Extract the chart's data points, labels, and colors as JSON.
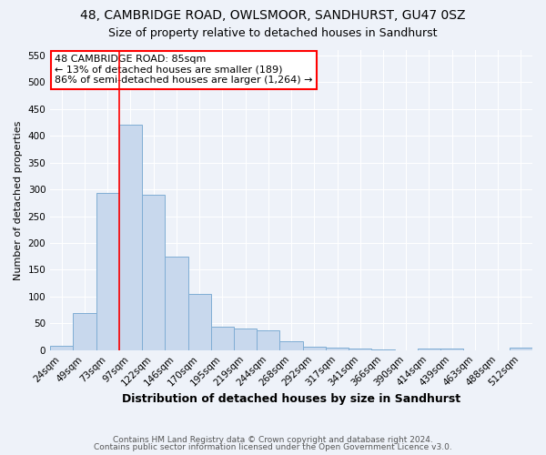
{
  "title": "48, CAMBRIDGE ROAD, OWLSMOOR, SANDHURST, GU47 0SZ",
  "subtitle": "Size of property relative to detached houses in Sandhurst",
  "xlabel": "Distribution of detached houses by size in Sandhurst",
  "ylabel": "Number of detached properties",
  "footer_lines": [
    "Contains HM Land Registry data © Crown copyright and database right 2024.",
    "Contains public sector information licensed under the Open Government Licence v3.0."
  ],
  "categories": [
    "24sqm",
    "49sqm",
    "73sqm",
    "97sqm",
    "122sqm",
    "146sqm",
    "170sqm",
    "195sqm",
    "219sqm",
    "244sqm",
    "268sqm",
    "292sqm",
    "317sqm",
    "341sqm",
    "366sqm",
    "390sqm",
    "414sqm",
    "439sqm",
    "463sqm",
    "488sqm",
    "512sqm"
  ],
  "values": [
    8,
    70,
    293,
    420,
    290,
    175,
    105,
    43,
    40,
    37,
    17,
    7,
    4,
    3,
    2,
    0,
    3,
    3,
    0,
    0,
    5
  ],
  "bar_color": "#c8d8ed",
  "bar_edge_color": "#7fadd4",
  "ylim": [
    0,
    560
  ],
  "yticks": [
    0,
    50,
    100,
    150,
    200,
    250,
    300,
    350,
    400,
    450,
    500,
    550
  ],
  "property_label": "48 CAMBRIDGE ROAD: 85sqm",
  "annotation_line1": "← 13% of detached houses are smaller (189)",
  "annotation_line2": "86% of semi-detached houses are larger (1,264) →",
  "vline_bin": 2.5,
  "background_color": "#eef2f9",
  "grid_color": "#ffffff",
  "title_fontsize": 10,
  "subtitle_fontsize": 9,
  "xlabel_fontsize": 9,
  "ylabel_fontsize": 8,
  "tick_fontsize": 7.5,
  "annotation_fontsize": 8,
  "footer_fontsize": 6.5
}
